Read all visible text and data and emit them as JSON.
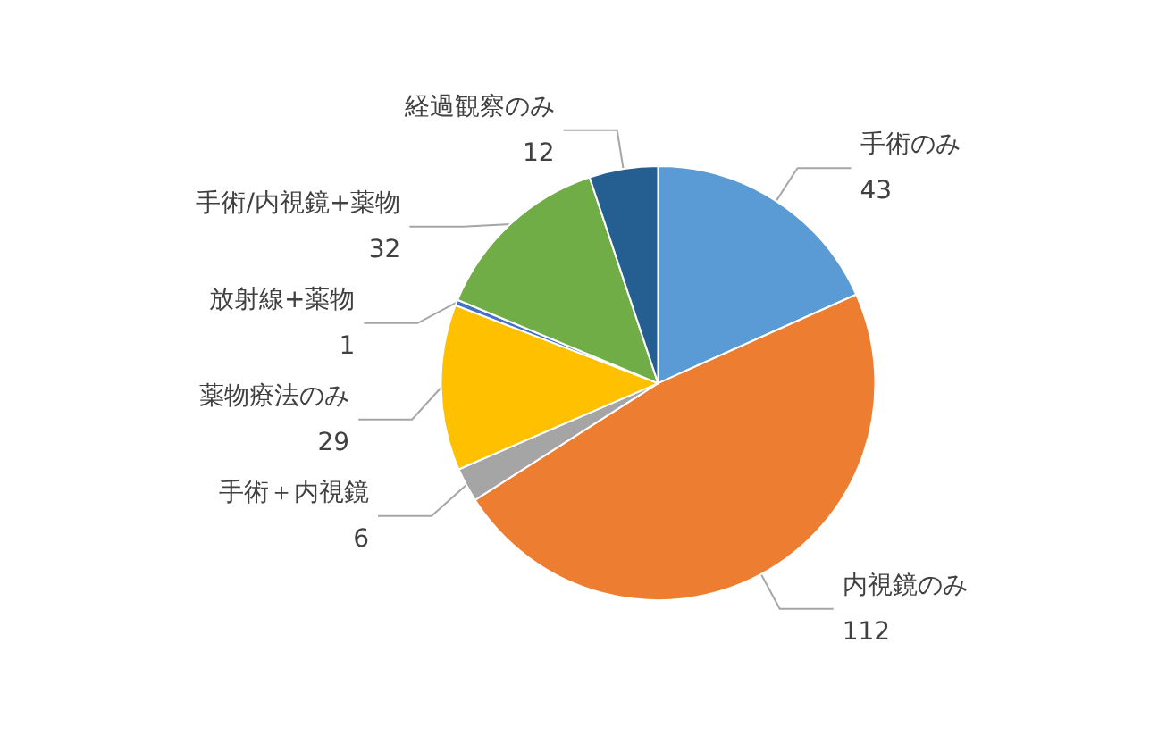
{
  "chart_data": {
    "type": "pie",
    "categories": [
      "手術のみ",
      "内視鏡のみ",
      "手術＋内視鏡",
      "薬物療法のみ",
      "放射線+薬物",
      "手術/内視鏡+薬物",
      "経過観察のみ"
    ],
    "values": [
      43,
      112,
      6,
      29,
      1,
      32,
      12
    ],
    "colors": [
      "#5b9bd5",
      "#ed7d31",
      "#a5a5a5",
      "#ffc000",
      "#4472c4",
      "#70ad47",
      "#255e91"
    ],
    "data_labels": true,
    "legend": false
  }
}
